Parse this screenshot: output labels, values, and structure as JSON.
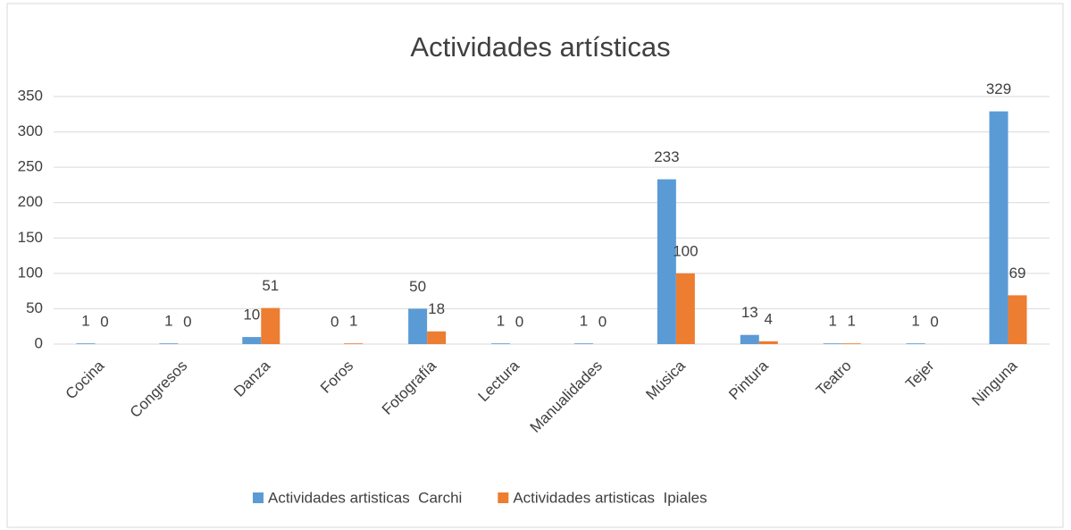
{
  "chart_data": {
    "type": "bar",
    "title": "Actividades artísticas",
    "categories": [
      "Cocina",
      "Congresos",
      "Danza",
      "Foros",
      "Fotografía",
      "Lectura",
      "Manualidades",
      "Música",
      "Pintura",
      "Teatro",
      "Tejer",
      "Ninguna"
    ],
    "series": [
      {
        "name": "Actividades artisticas  Carchi",
        "color": "#5b9bd5",
        "values": [
          1,
          1,
          10,
          0,
          50,
          1,
          1,
          233,
          13,
          1,
          1,
          329
        ]
      },
      {
        "name": "Actividades artisticas  Ipiales",
        "color": "#ed7d31",
        "values": [
          0,
          0,
          51,
          1,
          18,
          0,
          0,
          100,
          4,
          1,
          0,
          69
        ]
      }
    ],
    "ylim": [
      0,
      350
    ],
    "yticks": [
      0,
      50,
      100,
      150,
      200,
      250,
      300,
      350
    ],
    "grid": true,
    "legend": "bottom"
  }
}
